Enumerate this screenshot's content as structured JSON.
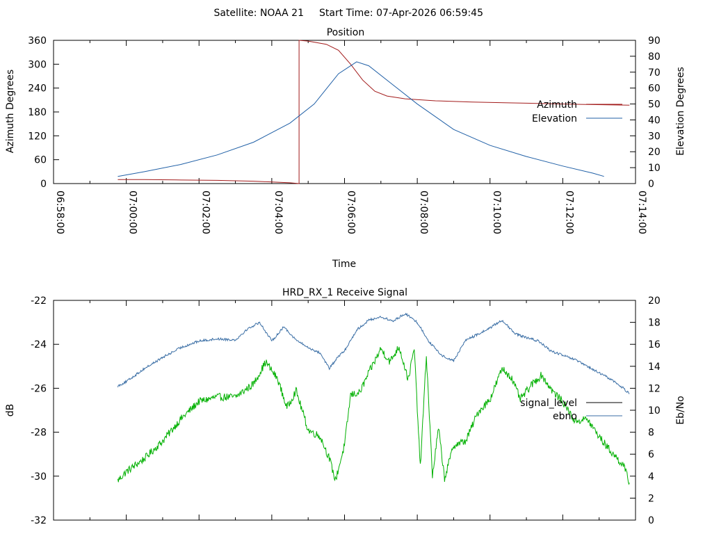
{
  "header": {
    "satellite": "Satellite: NOAA 21",
    "start_time": "Start Time: 07-Apr-2026 06:59:45"
  },
  "colors": {
    "azimuth": "#a21a1a",
    "elevation": "#1f5fa6",
    "ebno": "#3a6ea5",
    "signal_level": "#00b000",
    "signal_legend": "#000000"
  },
  "chart_data": [
    {
      "type": "line",
      "title": "Position",
      "xlabel": "Time",
      "ylabel": "Azimuth Degrees",
      "y2label": "Elevation Degrees",
      "xlim": [
        "06:58:00",
        "07:14:00"
      ],
      "ylim": [
        0,
        360
      ],
      "y2lim": [
        0,
        90
      ],
      "x_ticks": [
        "06:58:00",
        "07:00:00",
        "07:02:00",
        "07:04:00",
        "07:06:00",
        "07:08:00",
        "07:10:00",
        "07:12:00",
        "07:14:00"
      ],
      "y_ticks": [
        "0",
        "60",
        "120",
        "180",
        "240",
        "300",
        "360"
      ],
      "y2_ticks": [
        "0",
        "10",
        "20",
        "30",
        "40",
        "50",
        "60",
        "70",
        "80",
        "90"
      ],
      "legend_position": "right",
      "series": [
        {
          "name": "Azimuth",
          "axis": "y",
          "points": [
            [
              "06:59:46",
              10
            ],
            [
              "07:00:30",
              10
            ],
            [
              "07:01:30",
              9
            ],
            [
              "07:02:30",
              8
            ],
            [
              "07:03:30",
              6
            ],
            [
              "07:04:30",
              2
            ],
            [
              "07:04:45",
              0
            ],
            [
              "07:04:45",
              360
            ],
            [
              "07:05:00",
              358
            ],
            [
              "07:05:30",
              350
            ],
            [
              "07:05:50",
              335
            ],
            [
              "07:06:10",
              300
            ],
            [
              "07:06:30",
              260
            ],
            [
              "07:06:50",
              232
            ],
            [
              "07:07:10",
              220
            ],
            [
              "07:07:40",
              213
            ],
            [
              "07:08:30",
              208
            ],
            [
              "07:09:30",
              205
            ],
            [
              "07:10:30",
              203
            ],
            [
              "07:11:30",
              201
            ],
            [
              "07:12:30",
              199
            ],
            [
              "07:13:50",
              197
            ]
          ]
        },
        {
          "name": "Elevation",
          "axis": "y2",
          "points": [
            [
              "06:59:46",
              4.5
            ],
            [
              "07:00:30",
              7.5
            ],
            [
              "07:01:30",
              12
            ],
            [
              "07:02:30",
              18
            ],
            [
              "07:03:30",
              26
            ],
            [
              "07:04:30",
              38
            ],
            [
              "07:05:10",
              50
            ],
            [
              "07:05:50",
              69
            ],
            [
              "07:06:20",
              76.5
            ],
            [
              "07:06:40",
              74
            ],
            [
              "07:07:20",
              62
            ],
            [
              "07:08:00",
              50
            ],
            [
              "07:09:00",
              34
            ],
            [
              "07:10:00",
              24
            ],
            [
              "07:11:00",
              17
            ],
            [
              "07:12:00",
              11
            ],
            [
              "07:12:50",
              6.5
            ],
            [
              "07:13:08",
              4.5
            ]
          ]
        }
      ]
    },
    {
      "type": "line",
      "title": "HRD_RX_1 Receive Signal",
      "xlabel": "",
      "ylabel": "dB",
      "y2label": "Eb/No",
      "xlim": [
        "06:58:00",
        "07:14:00"
      ],
      "ylim": [
        -32,
        -22
      ],
      "y2lim": [
        0,
        20
      ],
      "y_ticks": [
        "-32",
        "-30",
        "-28",
        "-26",
        "-24",
        "-22"
      ],
      "y2_ticks": [
        "0",
        "2",
        "4",
        "6",
        "8",
        "10",
        "12",
        "14",
        "16",
        "18",
        "20"
      ],
      "legend_position": "right",
      "series": [
        {
          "name": "signal_level",
          "axis": "y",
          "points": [
            [
              "06:59:46",
              -30.2
            ],
            [
              "07:00:00",
              -29.8
            ],
            [
              "07:00:30",
              -29.2
            ],
            [
              "07:01:00",
              -28.4
            ],
            [
              "07:01:30",
              -27.4
            ],
            [
              "07:02:00",
              -26.6
            ],
            [
              "07:02:30",
              -26.4
            ],
            [
              "07:03:00",
              -26.4
            ],
            [
              "07:03:30",
              -25.8
            ],
            [
              "07:03:50",
              -24.8
            ],
            [
              "07:04:10",
              -25.6
            ],
            [
              "07:04:25",
              -26.9
            ],
            [
              "07:04:40",
              -26.1
            ],
            [
              "07:05:00",
              -27.9
            ],
            [
              "07:05:20",
              -28.2
            ],
            [
              "07:05:35",
              -29.2
            ],
            [
              "07:05:45",
              -30.2
            ],
            [
              "07:06:00",
              -28.6
            ],
            [
              "07:06:10",
              -26.3
            ],
            [
              "07:06:25",
              -26.2
            ],
            [
              "07:06:40",
              -25.3
            ],
            [
              "07:07:00",
              -24.2
            ],
            [
              "07:07:15",
              -24.8
            ],
            [
              "07:07:30",
              -24.1
            ],
            [
              "07:07:45",
              -25.6
            ],
            [
              "07:07:55",
              -24.2
            ],
            [
              "07:08:05",
              -29.6
            ],
            [
              "07:08:15",
              -24.5
            ],
            [
              "07:08:25",
              -30.0
            ],
            [
              "07:08:35",
              -27.8
            ],
            [
              "07:08:45",
              -30.1
            ],
            [
              "07:09:00",
              -28.6
            ],
            [
              "07:09:20",
              -28.4
            ],
            [
              "07:09:40",
              -27.1
            ],
            [
              "07:10:00",
              -26.5
            ],
            [
              "07:10:20",
              -25.1
            ],
            [
              "07:10:35",
              -25.5
            ],
            [
              "07:10:50",
              -26.5
            ],
            [
              "07:11:10",
              -25.8
            ],
            [
              "07:11:25",
              -25.4
            ],
            [
              "07:11:45",
              -26.2
            ],
            [
              "07:12:00",
              -26.6
            ],
            [
              "07:12:20",
              -27.5
            ],
            [
              "07:12:40",
              -27.4
            ],
            [
              "07:13:00",
              -28.2
            ],
            [
              "07:13:20",
              -28.9
            ],
            [
              "07:13:40",
              -29.5
            ],
            [
              "07:13:50",
              -30.3
            ]
          ]
        },
        {
          "name": "ebno",
          "axis": "y2",
          "points": [
            [
              "06:59:46",
              12.2
            ],
            [
              "07:00:00",
              12.6
            ],
            [
              "07:00:30",
              13.8
            ],
            [
              "07:01:00",
              14.8
            ],
            [
              "07:01:30",
              15.7
            ],
            [
              "07:02:00",
              16.3
            ],
            [
              "07:02:30",
              16.5
            ],
            [
              "07:03:00",
              16.4
            ],
            [
              "07:03:20",
              17.4
            ],
            [
              "07:03:40",
              18.0
            ],
            [
              "07:04:00",
              16.3
            ],
            [
              "07:04:20",
              17.6
            ],
            [
              "07:04:40",
              16.4
            ],
            [
              "07:05:00",
              15.7
            ],
            [
              "07:05:20",
              15.2
            ],
            [
              "07:05:35",
              13.8
            ],
            [
              "07:05:50",
              14.9
            ],
            [
              "07:06:00",
              15.4
            ],
            [
              "07:06:20",
              17.3
            ],
            [
              "07:06:40",
              18.2
            ],
            [
              "07:07:00",
              18.5
            ],
            [
              "07:07:20",
              18.1
            ],
            [
              "07:07:40",
              18.8
            ],
            [
              "07:08:00",
              18.0
            ],
            [
              "07:08:20",
              16.2
            ],
            [
              "07:08:40",
              15.0
            ],
            [
              "07:09:00",
              14.5
            ],
            [
              "07:09:20",
              16.4
            ],
            [
              "07:09:40",
              16.9
            ],
            [
              "07:10:00",
              17.5
            ],
            [
              "07:10:20",
              18.2
            ],
            [
              "07:10:40",
              17.0
            ],
            [
              "07:11:00",
              16.6
            ],
            [
              "07:11:20",
              16.3
            ],
            [
              "07:11:40",
              15.4
            ],
            [
              "07:12:00",
              15.0
            ],
            [
              "07:12:20",
              14.6
            ],
            [
              "07:12:40",
              14.0
            ],
            [
              "07:13:00",
              13.4
            ],
            [
              "07:13:20",
              12.8
            ],
            [
              "07:13:40",
              12.0
            ],
            [
              "07:13:50",
              11.5
            ]
          ]
        }
      ]
    }
  ]
}
